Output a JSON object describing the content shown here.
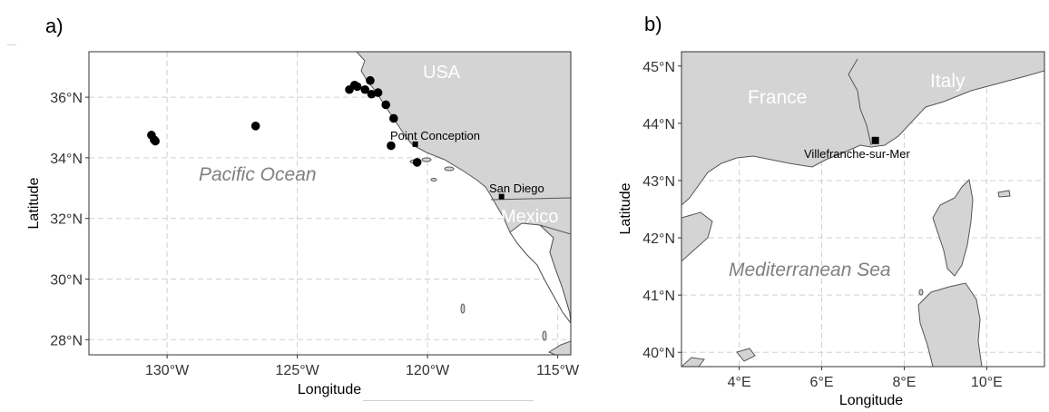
{
  "panels": [
    {
      "letter": "a)",
      "xlabel": "Longitude",
      "ylabel": "Latitude",
      "xticks": [
        "130°W",
        "125°W",
        "120°W",
        "115°W"
      ],
      "yticks": [
        "28°N",
        "30°N",
        "32°N",
        "34°N",
        "36°N"
      ],
      "xlim": [
        -133,
        -114.5
      ],
      "ylim": [
        27.5,
        37.5
      ],
      "labels": {
        "usa": "USA",
        "mexico": "Mexico",
        "ocean": "Pacific Ocean",
        "point_conception": "Point Conception",
        "san_diego": "San Diego"
      },
      "sampling_points": [
        {
          "lon": -130.6,
          "lat": 34.75
        },
        {
          "lon": -130.5,
          "lat": 34.6
        },
        {
          "lon": -130.45,
          "lat": 34.55
        },
        {
          "lon": -126.6,
          "lat": 35.05
        },
        {
          "lon": -123.0,
          "lat": 36.25
        },
        {
          "lon": -122.8,
          "lat": 36.4
        },
        {
          "lon": -122.7,
          "lat": 36.35
        },
        {
          "lon": -122.4,
          "lat": 36.25
        },
        {
          "lon": -122.2,
          "lat": 36.55
        },
        {
          "lon": -122.15,
          "lat": 36.1
        },
        {
          "lon": -121.9,
          "lat": 36.15
        },
        {
          "lon": -121.6,
          "lat": 35.75
        },
        {
          "lon": -121.3,
          "lat": 35.3
        },
        {
          "lon": -121.4,
          "lat": 34.4
        },
        {
          "lon": -120.4,
          "lat": 33.85
        }
      ],
      "stations": [
        {
          "name": "Point Conception",
          "lon": -120.47,
          "lat": 34.45
        },
        {
          "name": "San Diego",
          "lon": -117.16,
          "lat": 32.72
        }
      ]
    },
    {
      "letter": "b)",
      "xlabel": "Longitude",
      "ylabel": "Latitude",
      "xticks": [
        "4°E",
        "6°E",
        "8°E",
        "10°E"
      ],
      "yticks": [
        "40°N",
        "41°N",
        "42°N",
        "43°N",
        "44°N",
        "45°N"
      ],
      "xlim": [
        2.6,
        11.4
      ],
      "ylim": [
        39.75,
        45.25
      ],
      "labels": {
        "france": "France",
        "italy": "Italy",
        "sea": "Mediterranean Sea",
        "villefranche": "Villefranche-sur-Mer"
      },
      "stations": [
        {
          "name": "Villefranche-sur-Mer",
          "lon": 7.3,
          "lat": 43.7
        }
      ]
    }
  ],
  "colors": {
    "land": "#d4d4d4",
    "coast": "#555555",
    "grid": "#d0d0d0",
    "ocean_label": "#808080"
  }
}
